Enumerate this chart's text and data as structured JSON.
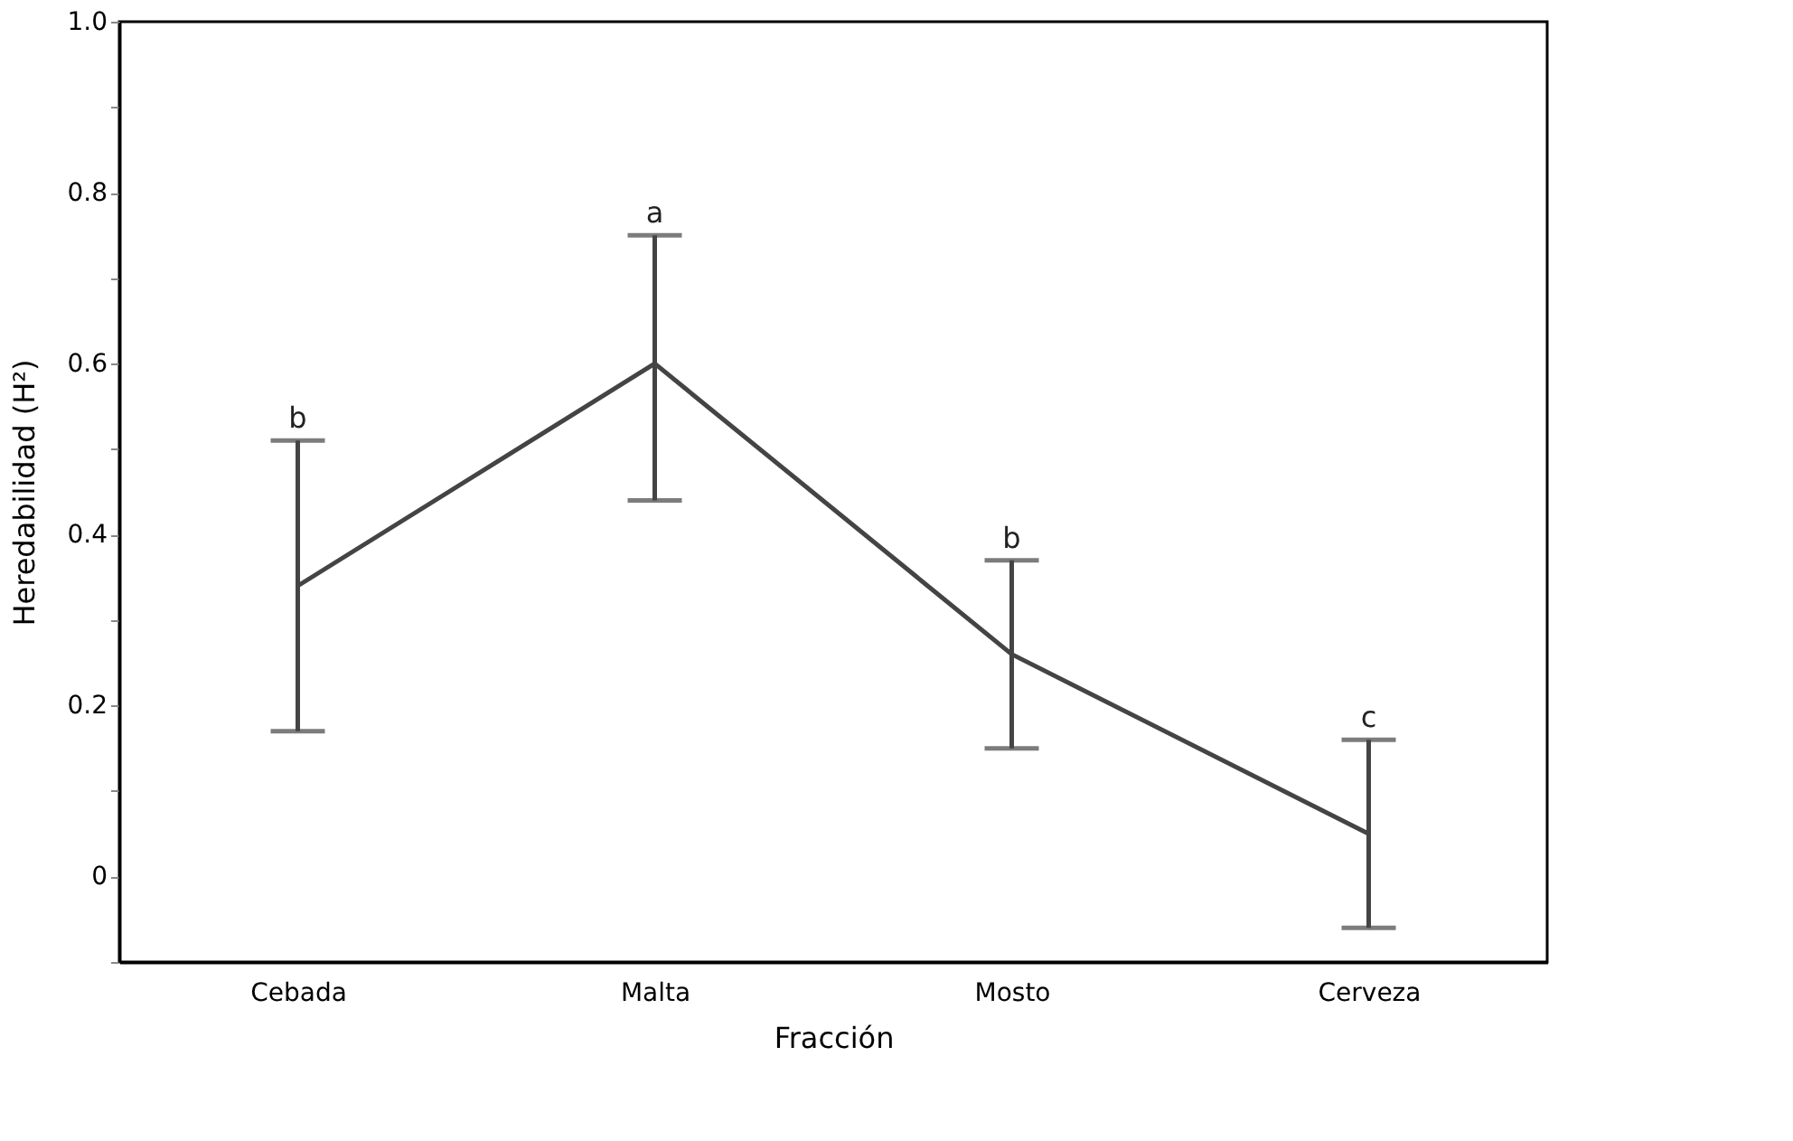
{
  "chart_data": {
    "type": "line",
    "xlabel": "Fracción",
    "ylabel": "Heredabilidad (H²)",
    "categories": [
      "Cebada",
      "Malta",
      "Mosto",
      "Cerveza"
    ],
    "series": [
      {
        "color": "#444444",
        "values": [
          0.34,
          0.6,
          0.26,
          0.05
        ],
        "errors": [
          [
            0.17,
            0.51
          ],
          [
            0.44,
            0.75
          ],
          [
            0.15,
            0.37
          ],
          [
            -0.06,
            0.16
          ]
        ]
      }
    ],
    "ylim": [
      -0.1,
      1.0
    ],
    "yticks": [
      {
        "value": -0.1,
        "label": null
      },
      0,
      {
        "value": 0.1,
        "label": null
      },
      0.2,
      {
        "value": 0.3,
        "label": null
      },
      0.4,
      {
        "value": 0.5,
        "label": null
      },
      0.6,
      {
        "value": 0.7,
        "label": null
      },
      0.8,
      {
        "value": 0.9,
        "label": null
      },
      {
        "value": 1,
        "label": "1.0"
      }
    ],
    "annotations": [
      {
        "text": "b",
        "x": "Cebada",
        "y": 0.51
      },
      {
        "text": "a",
        "x": "Malta",
        "y": 0.75
      },
      {
        "text": "b",
        "x": "Mosto",
        "y": 0.37
      },
      {
        "text": "c",
        "x": "Cerveza",
        "y": 0.16
      }
    ],
    "grid": false,
    "marker": "none",
    "line_style": "solid"
  }
}
